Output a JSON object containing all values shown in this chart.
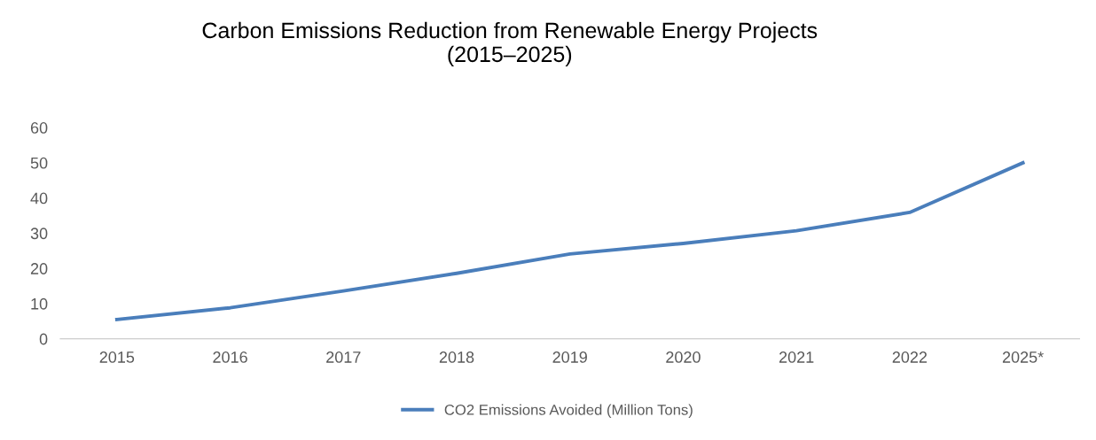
{
  "chart_data": {
    "type": "line",
    "title": "Carbon Emissions Reduction from Renewable Energy Projects\n(2015–2025)",
    "categories": [
      "2015",
      "2016",
      "2017",
      "2018",
      "2019",
      "2020",
      "2021",
      "2022",
      "2025*"
    ],
    "series": [
      {
        "name": "CO2 Emissions Avoided (Million Tons)",
        "color": "#4a7ebb",
        "values": [
          5.5,
          8.8,
          13.6,
          18.6,
          24.1,
          27.1,
          30.7,
          35.9,
          50.0
        ]
      }
    ],
    "ylim": [
      0,
      60
    ],
    "yticks": [
      0,
      10,
      20,
      30,
      40,
      50,
      60
    ],
    "grid": false,
    "legend": "bottom",
    "marker": "none",
    "line_style": "solid"
  }
}
